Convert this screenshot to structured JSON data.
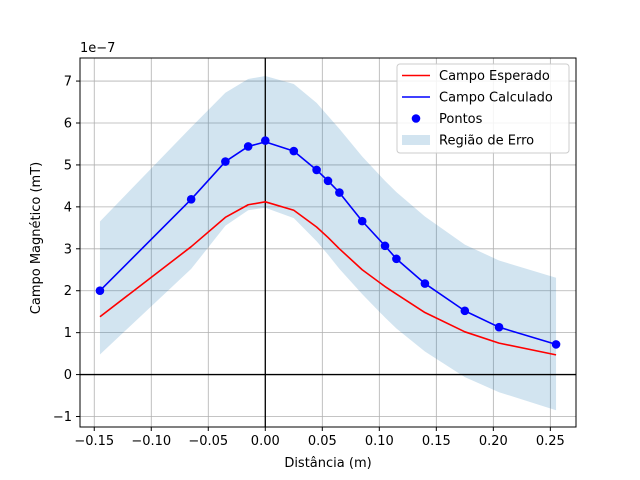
{
  "chart_data": {
    "type": "line",
    "xlabel": "Distância (m)",
    "ylabel": "Campo Magnético (mT)",
    "offset_text": "1e−7",
    "xlim": [
      -0.1625,
      0.2725
    ],
    "ylim": [
      -1.25,
      7.55
    ],
    "xticks": [
      -0.15,
      -0.1,
      -0.05,
      0.0,
      0.05,
      0.1,
      0.15,
      0.2,
      0.25
    ],
    "xtick_labels": [
      "−0.15",
      "−0.10",
      "−0.05",
      "0.00",
      "0.05",
      "0.10",
      "0.15",
      "0.20",
      "0.25"
    ],
    "yticks": [
      -1,
      0,
      1,
      2,
      3,
      4,
      5,
      6,
      7
    ],
    "ytick_labels": [
      "−1",
      "0",
      "1",
      "2",
      "3",
      "4",
      "5",
      "6",
      "7"
    ],
    "grid": true,
    "reference_lines": {
      "x": 0,
      "y": 0
    },
    "legend_position": "upper right",
    "x": [
      -0.145,
      -0.065,
      -0.035,
      -0.015,
      0.0,
      0.025,
      0.045,
      0.055,
      0.065,
      0.085,
      0.105,
      0.115,
      0.14,
      0.175,
      0.205,
      0.255
    ],
    "series": [
      {
        "name": "Campo Esperado",
        "kind": "line",
        "color": "#ff0000",
        "values": [
          1.38,
          3.05,
          3.75,
          4.05,
          4.12,
          3.92,
          3.52,
          3.27,
          3.0,
          2.5,
          2.1,
          1.92,
          1.48,
          1.02,
          0.75,
          0.47
        ]
      },
      {
        "name": "Campo Calculado",
        "kind": "line",
        "color": "#0000ff",
        "values": [
          2.0,
          4.18,
          5.08,
          5.44,
          5.55,
          5.33,
          4.88,
          4.62,
          4.34,
          3.66,
          3.07,
          2.76,
          2.17,
          1.52,
          1.13,
          0.72
        ]
      },
      {
        "name": "Pontos",
        "kind": "scatter",
        "color": "#0000ff",
        "values": [
          2.0,
          4.18,
          5.08,
          5.44,
          5.58,
          5.33,
          4.88,
          4.62,
          4.34,
          3.66,
          3.07,
          2.76,
          2.17,
          1.52,
          1.13,
          0.72
        ]
      },
      {
        "name": "Região de Erro",
        "kind": "band",
        "color": "#1f77b4",
        "opacity": 0.2,
        "lower": [
          0.48,
          2.52,
          3.55,
          3.92,
          3.98,
          3.73,
          3.18,
          2.86,
          2.52,
          1.92,
          1.36,
          1.1,
          0.55,
          -0.06,
          -0.42,
          -0.85
        ],
        "upper": [
          3.65,
          5.9,
          6.72,
          7.05,
          7.12,
          6.93,
          6.48,
          6.17,
          5.86,
          5.2,
          4.62,
          4.35,
          3.77,
          3.1,
          2.72,
          2.31
        ]
      }
    ]
  }
}
